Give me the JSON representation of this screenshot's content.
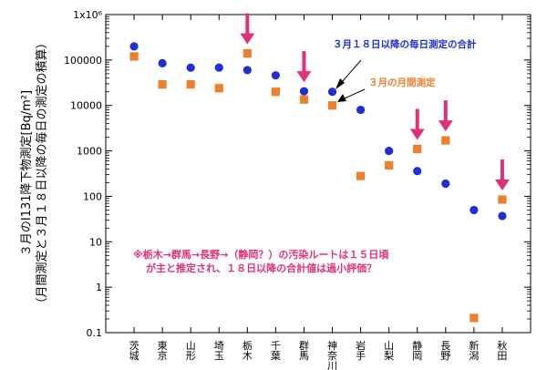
{
  "chart_data": {
    "type": "scatter",
    "yscale": "log",
    "ylim": [
      0.1,
      1000000
    ],
    "ylabel_line1": "３月のI131降下物測定[Bq/m²]",
    "ylabel_line2": "（月間測定と３月１８日以降の毎日の測定の積算）",
    "ytick_labels": [
      "0.1",
      "1",
      "10",
      "100",
      "1000",
      "10000",
      "100000",
      "1x10⁶"
    ],
    "categories": [
      "茨城",
      "東京",
      "山形",
      "埼玉",
      "栃木",
      "千葉",
      "群馬",
      "神奈川",
      "岩手",
      "山梨",
      "静岡",
      "長野",
      "新潟",
      "秋田"
    ],
    "series": [
      {
        "name": "３月１８日以降の毎日測定の合計",
        "color": "#1e2fd6",
        "marker": "circle",
        "values": [
          200000,
          85000,
          68000,
          68000,
          60000,
          46000,
          20500,
          20000,
          8000,
          1000,
          360,
          190,
          50,
          37
        ]
      },
      {
        "name": "３月の月間測定",
        "color": "#f07f2a",
        "marker": "square",
        "values": [
          120000,
          29000,
          29000,
          24000,
          140000,
          20000,
          13500,
          10000,
          280,
          480,
          1100,
          1700,
          0.21,
          85
        ]
      }
    ],
    "highlighted": [
      "栃木",
      "群馬",
      "静岡",
      "長野",
      "秋田"
    ],
    "highlight_color": "#e0307a",
    "annotation_line1": "※栃木→群馬→長野→（静岡？）の汚染ルートは１５日頃",
    "annotation_line2": "が主と推定され、１８日以降の合計値は過小評価？",
    "annotation_color": "#e0307a"
  }
}
